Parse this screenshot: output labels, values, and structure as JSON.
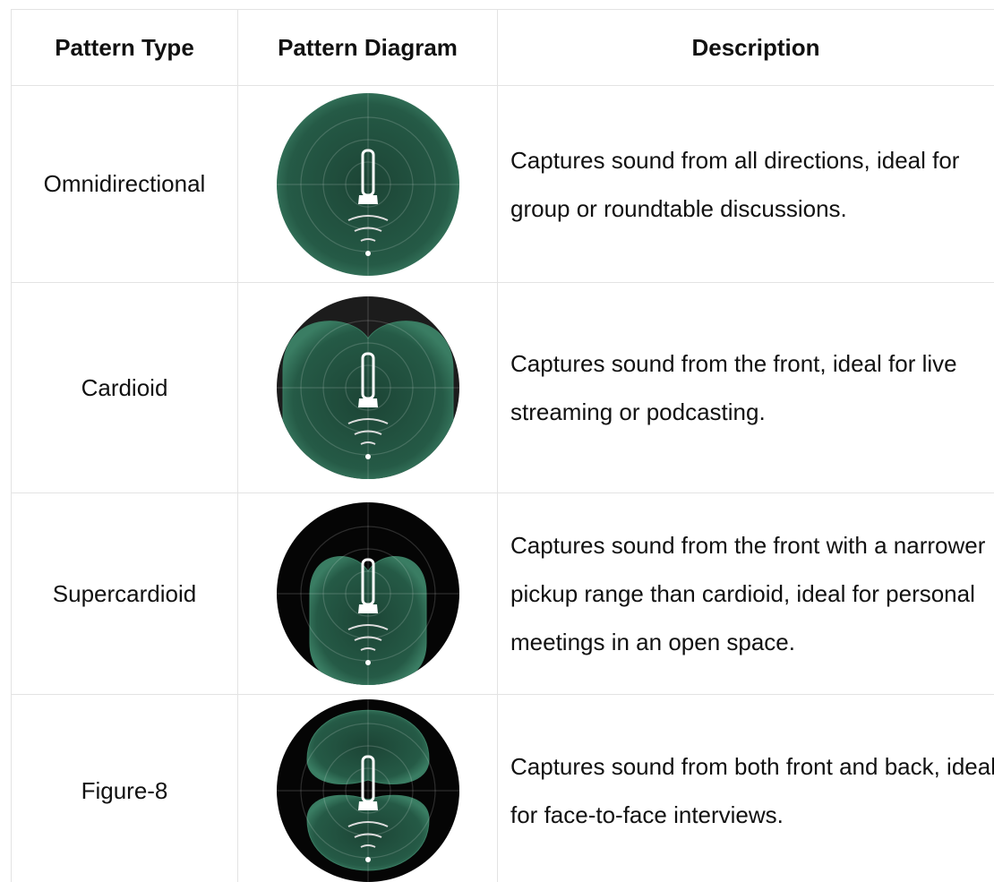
{
  "table": {
    "header": [
      "Pattern Type",
      "Pattern Diagram",
      "Description"
    ],
    "rows": [
      [
        "Omnidirectional",
        "Captures sound from all directions, ideal for group or roundtable discussions."
      ],
      [
        "Cardioid",
        "Captures sound from the front, ideal for live streaming or podcasting."
      ],
      [
        "Supercardioid",
        "Captures sound from the front with a narrower pickup range than cardioid, ideal for personal meetings in an open space."
      ],
      [
        "Figure-8",
        "Captures sound from both front and back, ideal for face-to-face interviews."
      ]
    ]
  }
}
